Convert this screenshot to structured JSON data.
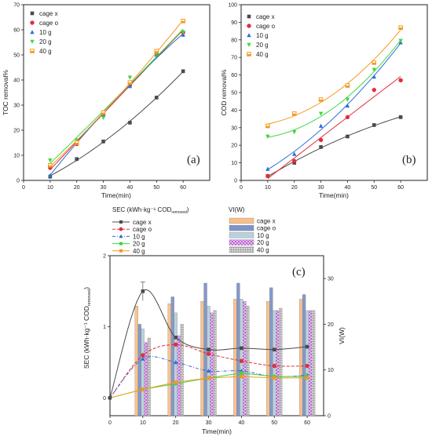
{
  "chart_data": [
    {
      "id": "a",
      "type": "line",
      "panel_label": "(a)",
      "xlabel": "Time(min)",
      "ylabel": "TOC removal%",
      "xlim": [
        0,
        70
      ],
      "ylim": [
        0,
        70
      ],
      "xticks": [
        "0",
        "10",
        "20",
        "30",
        "40",
        "50",
        "60"
      ],
      "yticks": [
        "0",
        "10",
        "20",
        "30",
        "40",
        "50",
        "60",
        "70"
      ],
      "legend_position": "top-left",
      "x": [
        10,
        20,
        30,
        40,
        50,
        60
      ],
      "series": [
        {
          "name": "cage x",
          "color": "#4a4a4a",
          "marker": "square",
          "values": [
            1.5,
            8.5,
            15.5,
            23,
            33,
            43.5
          ]
        },
        {
          "name": "cage o",
          "color": "#e0303a",
          "marker": "circle",
          "values": [
            5,
            14.5,
            26,
            38,
            50.5,
            59
          ]
        },
        {
          "name": "10 g",
          "color": "#2f6fd6",
          "marker": "triangle",
          "values": [
            2,
            15.5,
            26.5,
            37.5,
            50,
            58
          ]
        },
        {
          "name": "20 g",
          "color": "#3fd63f",
          "marker": "tridown",
          "values": [
            8,
            16,
            25,
            41,
            50.5,
            59
          ]
        },
        {
          "name": "40 g",
          "color": "#f39a1e",
          "marker": "halfsq",
          "values": [
            6,
            15,
            27,
            39,
            51.5,
            63.5
          ]
        }
      ]
    },
    {
      "id": "b",
      "type": "line",
      "panel_label": "(b)",
      "xlabel": "Time(min)",
      "ylabel": "COD removal%",
      "xlim": [
        0,
        70
      ],
      "ylim": [
        0,
        100
      ],
      "xticks": [
        "0",
        "10",
        "20",
        "30",
        "40",
        "50",
        "60"
      ],
      "yticks": [
        "0",
        "10",
        "20",
        "30",
        "40",
        "50",
        "60",
        "70",
        "80",
        "90",
        "100"
      ],
      "legend_position": "top-left",
      "x": [
        10,
        20,
        30,
        40,
        50,
        60
      ],
      "series": [
        {
          "name": "cage x",
          "color": "#4a4a4a",
          "marker": "square",
          "values": [
            2.5,
            10,
            19,
            25,
            31.5,
            36
          ]
        },
        {
          "name": "cage o",
          "color": "#e0303a",
          "marker": "circle",
          "values": [
            2.5,
            11,
            23,
            36,
            51.5,
            57
          ]
        },
        {
          "name": "10 g",
          "color": "#2f6fd6",
          "marker": "triangle",
          "values": [
            6.5,
            15,
            31,
            42.5,
            59,
            78.5
          ]
        },
        {
          "name": "20 g",
          "color": "#3fd63f",
          "marker": "tridown",
          "values": [
            25,
            27.5,
            38,
            46,
            63,
            79.5
          ]
        },
        {
          "name": "40 g",
          "color": "#f39a1e",
          "marker": "halfsq",
          "values": [
            31,
            38,
            46,
            54,
            67,
            87
          ]
        }
      ]
    },
    {
      "id": "c",
      "type": "bar",
      "panel_label": "(c)",
      "xlabel": "Time(min)",
      "ylabel_left": "SEC (kWh·kg⁻¹ COD",
      "ylabel_left_sub": "removed",
      "ylabel_left_close": ")",
      "ylabel_right": "VI(W)",
      "xlim": [
        0,
        65
      ],
      "ylim_left": [
        -0.25,
        2
      ],
      "ylim_right": [
        0,
        35
      ],
      "xticks": [
        "0",
        "10",
        "20",
        "30",
        "40",
        "50",
        "60"
      ],
      "yticks_left": [
        "0",
        "1",
        "2"
      ],
      "yticks_right": [
        "0",
        "10",
        "20",
        "30"
      ],
      "legend_position": "top",
      "sec_legend_title": "SEC (kWh·kg⁻¹ COD",
      "sec_legend_sub": "removed",
      "sec_legend_close": ")",
      "vi_legend_title": "VI(W)",
      "x": [
        0,
        10,
        20,
        30,
        40,
        50,
        60
      ],
      "sec_series": [
        {
          "name": "cage x",
          "color": "#4a4a4a",
          "marker": "square",
          "values": [
            0,
            1.5,
            0.85,
            0.68,
            0.7,
            0.68,
            0.72
          ]
        },
        {
          "name": "cage o",
          "color": "#e0303a",
          "marker": "circle",
          "values": [
            0,
            0.6,
            0.75,
            0.62,
            0.52,
            0.45,
            0.45
          ]
        },
        {
          "name": "10 g",
          "color": "#2f6fd6",
          "marker": "triangle",
          "values": [
            0,
            0.55,
            0.5,
            0.38,
            0.38,
            0.3,
            0.32
          ]
        },
        {
          "name": "20 g",
          "color": "#3fd63f",
          "marker": "square",
          "values": [
            0,
            0.12,
            0.2,
            0.28,
            0.35,
            0.3,
            0.3
          ]
        },
        {
          "name": "40 g",
          "color": "#f39a1e",
          "marker": "square",
          "values": [
            0,
            0.12,
            0.22,
            0.28,
            0.3,
            0.28,
            0.28
          ]
        }
      ],
      "bar_x": [
        10,
        20,
        30,
        40,
        50,
        60
      ],
      "vi_series": [
        {
          "name": "cage x",
          "fill": "#f7c089",
          "pattern": "solid",
          "values": [
            24,
            24.5,
            25,
            25.5,
            25,
            25.5
          ]
        },
        {
          "name": "cage o",
          "fill": "#7f93c7",
          "pattern": "solid",
          "values": [
            20,
            26,
            29,
            29,
            28,
            26.5
          ]
        },
        {
          "name": "10 g",
          "fill": "#b7d1de",
          "pattern": "solid",
          "values": [
            19,
            22.5,
            24,
            25.5,
            23,
            23
          ]
        },
        {
          "name": "20 g",
          "fill": "#d9a8e6",
          "pattern": "crosshatch",
          "values": [
            16,
            17.5,
            22.5,
            25,
            23,
            23
          ]
        },
        {
          "name": "40 g",
          "fill": "#bdbdbd",
          "pattern": "grid",
          "values": [
            17,
            20,
            23,
            24,
            23.5,
            23
          ]
        }
      ]
    }
  ]
}
